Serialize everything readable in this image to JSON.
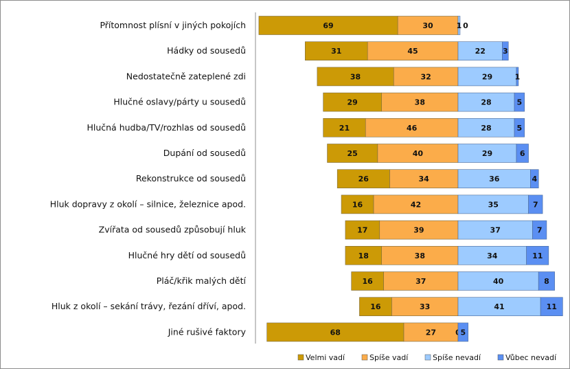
{
  "chart_data": {
    "type": "bar",
    "orientation": "horizontal",
    "stacking": "diverging",
    "categories": [
      "Přítomnost plísní v jiných pokojích",
      "Hádky od sousedů",
      "Nedostatečně zateplené zdi",
      "Hlučné oslavy/párty u sousedů",
      "Hlučná hudba/TV/rozhlas od sousedů",
      "Dupání od sousedů",
      "Rekonstrukce od sousedů",
      "Hluk dopravy z okolí – silnice, železnice apod.",
      "Zvířata od sousedů způsobují hluk",
      "Hlučné hry dětí od sousedů",
      "Pláč/křik malých dětí",
      "Hluk z okolí – sekání trávy, řezání dříví, apod.",
      "Jiné rušivé faktory"
    ],
    "series": [
      {
        "name": "Velmi vadí",
        "side": "left",
        "color": "#cc9a06",
        "values": [
          69,
          31,
          38,
          29,
          21,
          25,
          26,
          16,
          17,
          18,
          16,
          16,
          68
        ]
      },
      {
        "name": "Spíše vadí",
        "side": "left",
        "color": "#fbac4a",
        "values": [
          30,
          45,
          32,
          38,
          46,
          40,
          34,
          42,
          39,
          38,
          37,
          33,
          27
        ]
      },
      {
        "name": "Spíše nevadí",
        "side": "right",
        "color": "#9dcbff",
        "values": [
          1,
          22,
          29,
          28,
          28,
          29,
          36,
          35,
          37,
          34,
          40,
          41,
          0
        ]
      },
      {
        "name": "Vůbec nevadí",
        "side": "right",
        "color": "#5b8ff2",
        "values": [
          0,
          3,
          1,
          5,
          5,
          6,
          4,
          7,
          7,
          11,
          8,
          11,
          5
        ]
      }
    ],
    "legend_position": "bottom-right",
    "grid": false,
    "data_labels": true
  }
}
